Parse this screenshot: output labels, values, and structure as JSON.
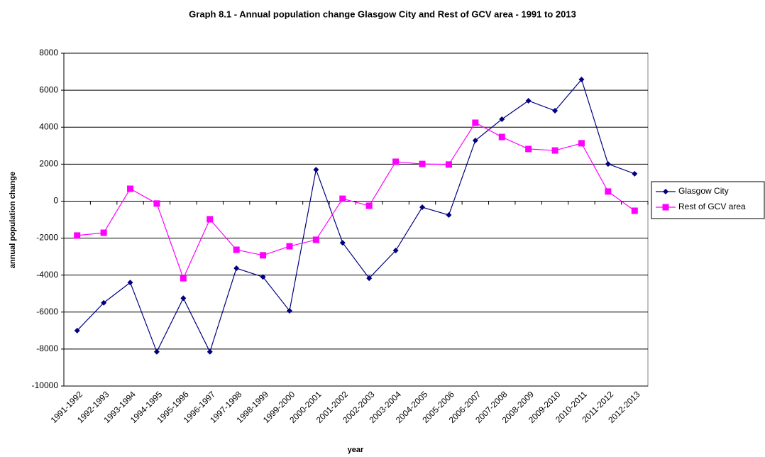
{
  "chart_data": {
    "type": "line",
    "title": "Graph 8.1 - Annual population change Glasgow City and Rest of GCV area - 1991 to 2013",
    "x_label": "year",
    "y_label": "annual population change",
    "categories": [
      "1991-1992",
      "1992-1993",
      "1993-1994",
      "1994-1995",
      "1995-1996",
      "1996-1997",
      "1997-1998",
      "1998-1999",
      "1999-2000",
      "2000-2001",
      "2001-2002",
      "2002-2003",
      "2003-2004",
      "2004-2005",
      "2005-2006",
      "2006-2007",
      "2007-2008",
      "2008-2009",
      "2009-2010",
      "2010-2011",
      "2011-2012",
      "2012-2013"
    ],
    "series": [
      {
        "name": "Glasgow City",
        "color": "#000080",
        "marker": "diamond",
        "values": [
          -7000,
          -5500,
          -4400,
          -8150,
          -5250,
          -8150,
          -3630,
          -4100,
          -5930,
          1700,
          -2250,
          -4170,
          -2670,
          -330,
          -750,
          3280,
          4430,
          5430,
          4890,
          6580,
          2010,
          1480
        ]
      },
      {
        "name": "Rest of GCV area",
        "color": "#ff00ff",
        "marker": "square",
        "values": [
          -1860,
          -1710,
          670,
          -130,
          -4170,
          -980,
          -2630,
          -2930,
          -2440,
          -2090,
          130,
          -250,
          2130,
          2010,
          1980,
          4240,
          3470,
          2820,
          2740,
          3130,
          520,
          -520
        ]
      }
    ],
    "ylim": [
      -10000,
      8000
    ],
    "yticks": [
      -10000,
      -8000,
      -6000,
      -4000,
      -2000,
      0,
      2000,
      4000,
      6000,
      8000
    ],
    "grid": true,
    "legend": "right"
  }
}
